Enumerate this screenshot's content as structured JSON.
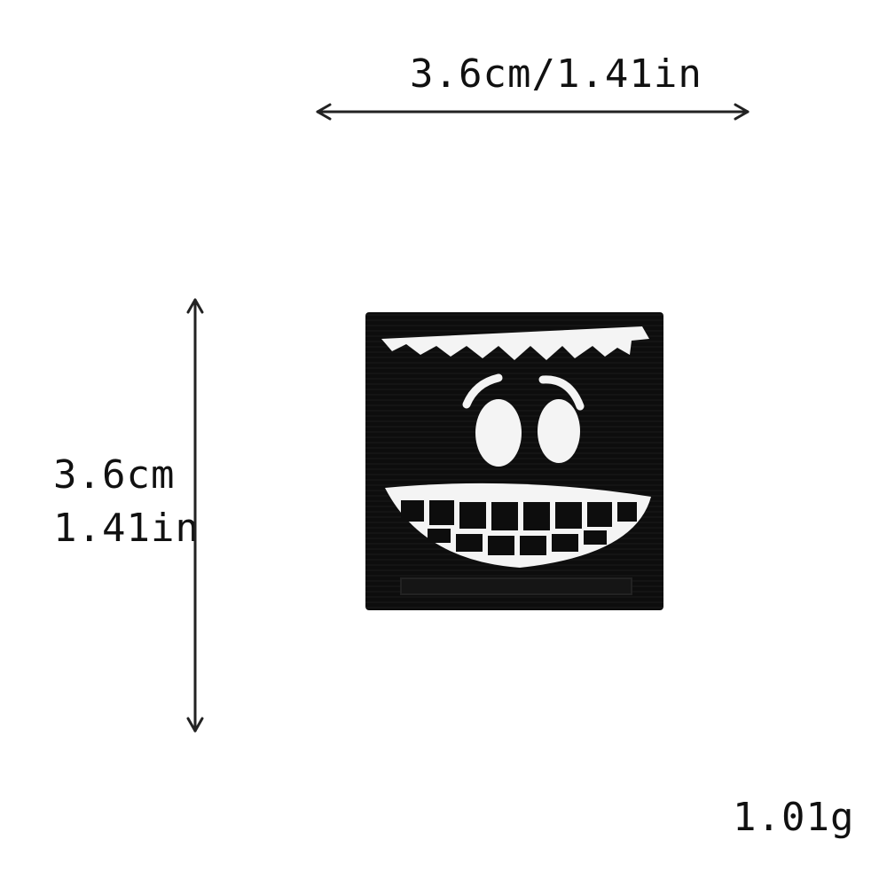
{
  "dimensions": {
    "width_label": "3.6cm/1.41in",
    "height_cm_label": "3.6cm",
    "height_in_label": "1.41in",
    "weight_label": "1.01g"
  },
  "colors": {
    "background": "#ffffff",
    "arrow": "#222222",
    "patch_fill": "#0d0d0d",
    "patch_stitch": "#f4f4f4"
  },
  "icons": {
    "width_arrow": "double-headed-horizontal-arrow-icon",
    "height_arrow": "double-headed-vertical-arrow-icon",
    "product": "square-black-embroidered-smiling-face-patch"
  }
}
